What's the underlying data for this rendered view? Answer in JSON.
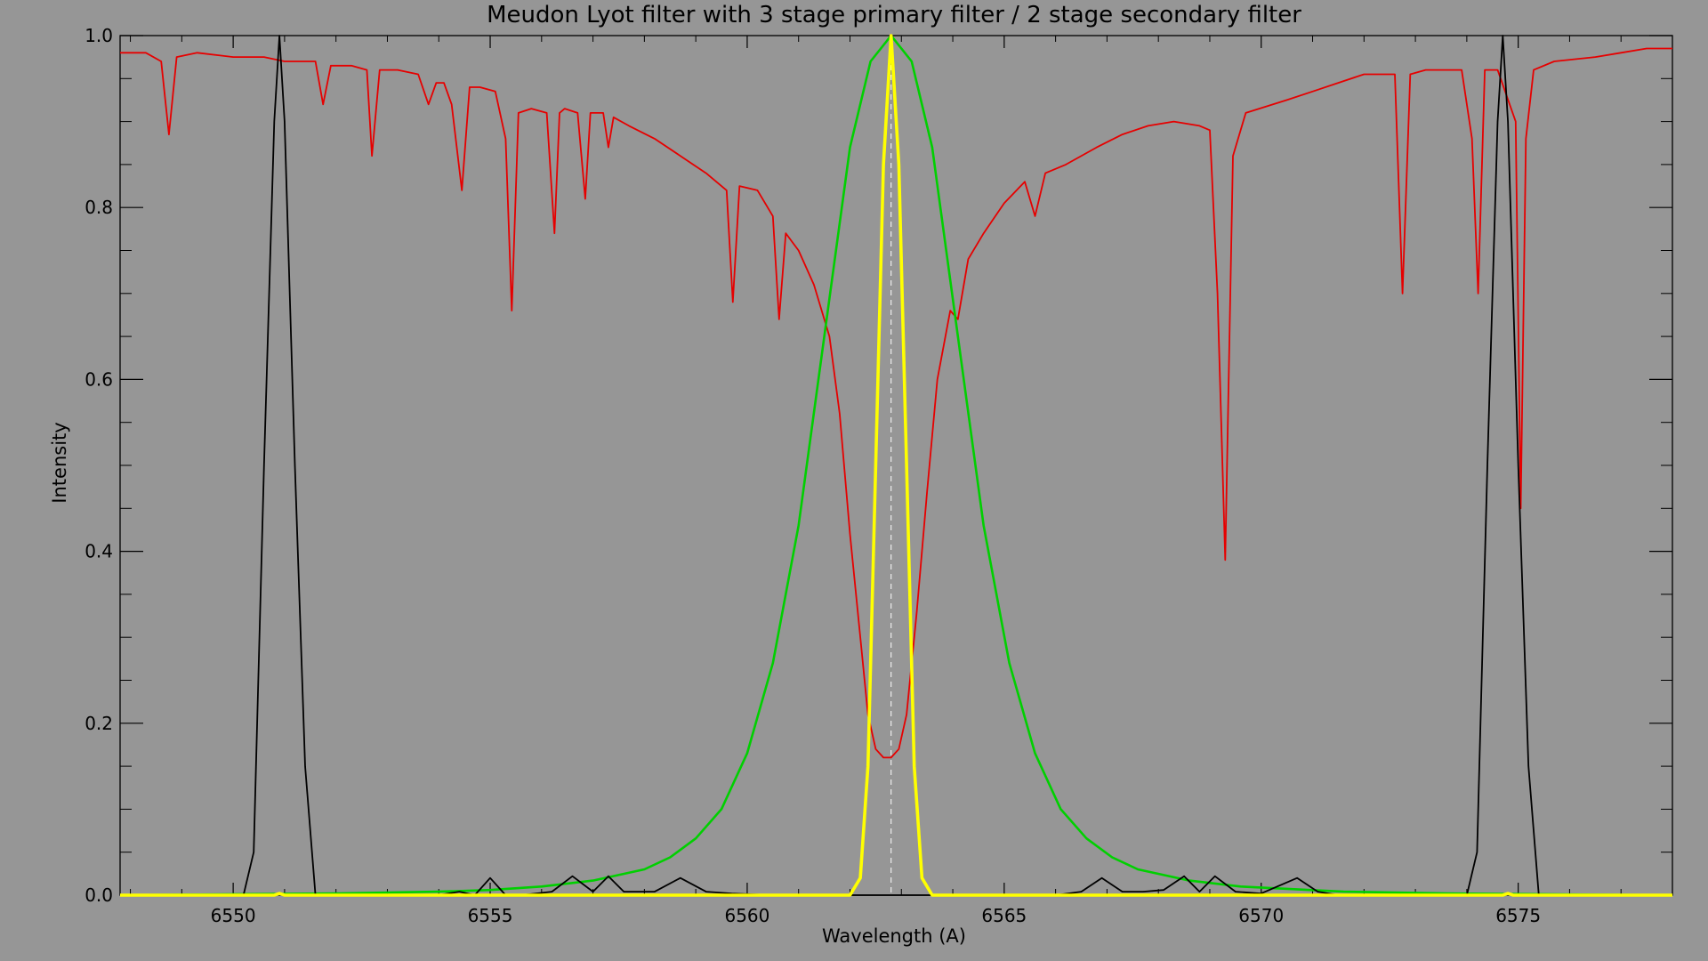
{
  "chart_data": {
    "type": "line",
    "title": "Meudon Lyot filter with 3 stage primary filter / 2 stage secondary filter",
    "xlabel": "Wavelength (A)",
    "ylabel": "Intensity",
    "xlim": [
      6547.8,
      6578.0
    ],
    "ylim": [
      0.0,
      1.0
    ],
    "x_ticks": [
      6550,
      6555,
      6560,
      6565,
      6570,
      6575
    ],
    "x_tick_labels": [
      "6550",
      "6555",
      "6560",
      "6565",
      "6570",
      "6575"
    ],
    "y_ticks": [
      0.0,
      0.2,
      0.4,
      0.6,
      0.8,
      1.0
    ],
    "y_tick_labels": [
      "0.0",
      "0.2",
      "0.4",
      "0.6",
      "0.8",
      "1.0"
    ],
    "reference_line": {
      "x": 6562.8,
      "color": "#ffffff",
      "style": "dashed"
    },
    "series": [
      {
        "color": "#e60000",
        "x": [
          6547.8,
          6548.3,
          6548.6,
          6548.75,
          6548.9,
          6549.3,
          6550.0,
          6550.4,
          6550.6,
          6551.0,
          6551.6,
          6551.75,
          6551.9,
          6552.3,
          6552.6,
          6552.7,
          6552.85,
          6553.2,
          6553.6,
          6553.8,
          6553.95,
          6554.1,
          6554.25,
          6554.45,
          6554.6,
          6554.8,
          6555.1,
          6555.3,
          6555.42,
          6555.55,
          6555.8,
          6556.1,
          6556.25,
          6556.35,
          6556.45,
          6556.7,
          6556.85,
          6556.95,
          6557.2,
          6557.3,
          6557.4,
          6557.7,
          6558.2,
          6558.7,
          6559.2,
          6559.6,
          6559.72,
          6559.85,
          6560.2,
          6560.5,
          6560.62,
          6560.75,
          6561.0,
          6561.3,
          6561.6,
          6561.8,
          6562.0,
          6562.2,
          6562.35,
          6562.5,
          6562.65,
          6562.8,
          6562.95,
          6563.1,
          6563.3,
          6563.5,
          6563.7,
          6563.95,
          6564.1,
          6564.3,
          6564.6,
          6565.0,
          6565.4,
          6565.6,
          6565.8,
          6566.2,
          6566.8,
          6567.3,
          6567.8,
          6568.3,
          6568.8,
          6569.0,
          6569.15,
          6569.3,
          6569.45,
          6569.7,
          6570.5,
          6571.0,
          6571.5,
          6572.0,
          6572.6,
          6572.75,
          6572.9,
          6573.2,
          6573.9,
          6574.1,
          6574.22,
          6574.35,
          6574.6,
          6574.95,
          6575.05,
          6575.15,
          6575.3,
          6575.7,
          6576.5,
          6577.0,
          6577.5,
          6578.0
        ],
        "values": [
          0.98,
          0.98,
          0.97,
          0.885,
          0.975,
          0.98,
          0.975,
          0.975,
          0.975,
          0.97,
          0.97,
          0.92,
          0.965,
          0.965,
          0.96,
          0.86,
          0.96,
          0.96,
          0.955,
          0.92,
          0.945,
          0.945,
          0.92,
          0.82,
          0.94,
          0.94,
          0.935,
          0.88,
          0.68,
          0.91,
          0.915,
          0.91,
          0.77,
          0.91,
          0.915,
          0.91,
          0.81,
          0.91,
          0.91,
          0.87,
          0.905,
          0.895,
          0.88,
          0.86,
          0.84,
          0.82,
          0.69,
          0.825,
          0.82,
          0.79,
          0.67,
          0.77,
          0.75,
          0.71,
          0.65,
          0.56,
          0.42,
          0.3,
          0.21,
          0.17,
          0.16,
          0.16,
          0.17,
          0.21,
          0.33,
          0.47,
          0.6,
          0.68,
          0.67,
          0.74,
          0.77,
          0.805,
          0.83,
          0.79,
          0.84,
          0.85,
          0.87,
          0.885,
          0.895,
          0.9,
          0.895,
          0.89,
          0.7,
          0.39,
          0.86,
          0.91,
          0.925,
          0.935,
          0.945,
          0.955,
          0.955,
          0.7,
          0.955,
          0.96,
          0.96,
          0.88,
          0.7,
          0.96,
          0.96,
          0.9,
          0.45,
          0.88,
          0.96,
          0.97,
          0.975,
          0.98,
          0.985,
          0.985
        ]
      },
      {
        "color": "#00d000",
        "x": [
          6547.8,
          6552.0,
          6554.0,
          6555.0,
          6556.0,
          6557.0,
          6558.0,
          6558.5,
          6559.0,
          6559.5,
          6560.0,
          6560.5,
          6561.0,
          6561.5,
          6562.0,
          6562.4,
          6562.8,
          6563.2,
          6563.6,
          6564.1,
          6564.6,
          6565.1,
          6565.6,
          6566.1,
          6566.6,
          6567.1,
          6567.6,
          6568.6,
          6569.6,
          6571.6,
          6573.6,
          6578.0
        ],
        "values": [
          0.0,
          0.002,
          0.004,
          0.006,
          0.01,
          0.017,
          0.03,
          0.044,
          0.066,
          0.1,
          0.165,
          0.27,
          0.43,
          0.65,
          0.87,
          0.97,
          1.0,
          0.97,
          0.87,
          0.65,
          0.43,
          0.27,
          0.165,
          0.1,
          0.066,
          0.044,
          0.03,
          0.017,
          0.01,
          0.004,
          0.002,
          0.0
        ]
      },
      {
        "color": "#000000",
        "x": [
          6547.8,
          6550.2,
          6550.4,
          6550.6,
          6550.8,
          6550.9,
          6551.0,
          6551.2,
          6551.4,
          6551.6,
          6552.0,
          6554.0,
          6554.4,
          6554.7,
          6555.0,
          6555.3,
          6555.6,
          6556.2,
          6556.6,
          6557.0,
          6557.3,
          6557.6,
          6558.2,
          6558.7,
          6559.2,
          6559.7,
          6560.5,
          6566.0,
          6566.5,
          6566.9,
          6567.3,
          6567.7,
          6568.1,
          6568.5,
          6568.8,
          6569.1,
          6569.5,
          6570.0,
          6570.7,
          6571.1,
          6571.5,
          6574.0,
          6574.2,
          6574.4,
          6574.6,
          6574.7,
          6574.8,
          6575.0,
          6575.2,
          6575.4,
          6575.6,
          6578.0
        ],
        "values": [
          0.0,
          0.0,
          0.05,
          0.5,
          0.9,
          1.0,
          0.9,
          0.5,
          0.15,
          0.0,
          0.0,
          0.0,
          0.004,
          0.0,
          0.02,
          0.0,
          0.0,
          0.004,
          0.022,
          0.004,
          0.022,
          0.004,
          0.004,
          0.02,
          0.004,
          0.002,
          0.0,
          0.0,
          0.004,
          0.02,
          0.004,
          0.004,
          0.006,
          0.022,
          0.004,
          0.022,
          0.004,
          0.002,
          0.02,
          0.004,
          0.0,
          0.0,
          0.05,
          0.5,
          0.9,
          1.0,
          0.9,
          0.5,
          0.15,
          0.0,
          0.0,
          0.0
        ]
      },
      {
        "color": "#ffff00",
        "x": [
          6547.8,
          6550.8,
          6550.9,
          6551.0,
          6562.0,
          6562.2,
          6562.35,
          6562.5,
          6562.65,
          6562.8,
          6562.95,
          6563.1,
          6563.25,
          6563.4,
          6563.6,
          6574.7,
          6574.8,
          6574.9,
          6578.0
        ],
        "values": [
          0.0,
          0.0,
          0.002,
          0.0,
          0.0,
          0.02,
          0.15,
          0.5,
          0.85,
          1.0,
          0.85,
          0.5,
          0.15,
          0.02,
          0.0,
          0.0,
          0.002,
          0.0,
          0.0
        ]
      }
    ]
  }
}
